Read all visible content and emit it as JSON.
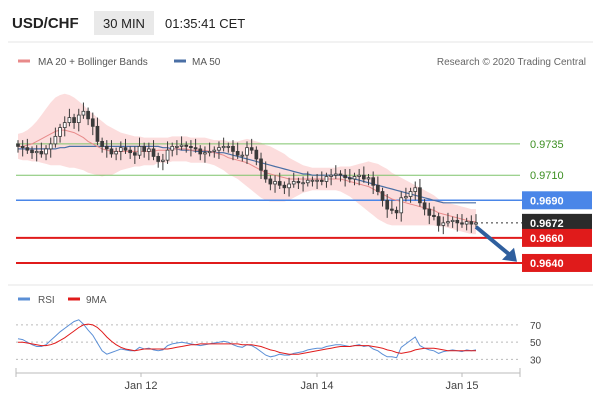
{
  "header": {
    "symbol": "USD/CHF",
    "timeframe": "30 MIN",
    "time": "01:35:41 CET"
  },
  "legend": {
    "ma20_bb": "MA 20 + Bollinger Bands",
    "ma50": "MA 50",
    "copyright": "Research © 2020 Trading Central"
  },
  "rsi_legend": {
    "rsi": "RSI",
    "ma9": "9MA"
  },
  "colors": {
    "candle": "#3a3a3a",
    "bollinger_fill": "#fbd7d7",
    "ma20": "#e88a8a",
    "ma50": "#4a6fa5",
    "green_level": "#7fc46b",
    "blue_level": "#4a86e8",
    "red_level": "#e01b1b",
    "arrow": "#2f5f9e",
    "rsi": "#5b8fd6",
    "rsi_ma": "#e01b1b"
  },
  "chart_data": [
    {
      "type": "candlestick",
      "title": "USD/CHF",
      "ylim": [
        0.9628,
        0.9778
      ],
      "x_ticks": [
        "Jan 12",
        "Jan 14",
        "Jan 15"
      ],
      "levels": [
        {
          "label": "0.9735",
          "value": 0.9735,
          "style": "green"
        },
        {
          "label": "0.9710",
          "value": 0.971,
          "style": "green"
        },
        {
          "label": "0.9690",
          "value": 0.969,
          "style": "blue"
        },
        {
          "label": "0.9672",
          "value": 0.9672,
          "style": "current"
        },
        {
          "label": "0.9660",
          "value": 0.966,
          "style": "red"
        },
        {
          "label": "0.9640",
          "value": 0.964,
          "style": "red"
        }
      ],
      "close": [
        0.9733,
        0.9732,
        0.973,
        0.9728,
        0.9729,
        0.9727,
        0.9731,
        0.9735,
        0.9741,
        0.9748,
        0.9752,
        0.9756,
        0.9752,
        0.9758,
        0.9761,
        0.9755,
        0.9749,
        0.9737,
        0.9733,
        0.9731,
        0.9727,
        0.9729,
        0.9732,
        0.973,
        0.9728,
        0.9726,
        0.9733,
        0.9729,
        0.9731,
        0.9725,
        0.9721,
        0.9722,
        0.973,
        0.9733,
        0.9733,
        0.9734,
        0.9733,
        0.9732,
        0.9731,
        0.9727,
        0.9728,
        0.9729,
        0.973,
        0.9732,
        0.9733,
        0.9733,
        0.9729,
        0.9726,
        0.9726,
        0.9732,
        0.973,
        0.9723,
        0.9714,
        0.9707,
        0.9703,
        0.9705,
        0.9702,
        0.97,
        0.9703,
        0.9705,
        0.9704,
        0.9704,
        0.9706,
        0.9706,
        0.9706,
        0.9705,
        0.9709,
        0.971,
        0.9711,
        0.971,
        0.9708,
        0.9707,
        0.9709,
        0.971,
        0.9707,
        0.9708,
        0.9702,
        0.9697,
        0.969,
        0.9683,
        0.9682,
        0.968,
        0.9692,
        0.9693,
        0.9697,
        0.97,
        0.9688,
        0.9683,
        0.9678,
        0.9677,
        0.967,
        0.9672,
        0.9673,
        0.9674,
        0.9672,
        0.9671,
        0.9673,
        0.9671,
        0.9672
      ],
      "ma20": [
        0.9733,
        0.9733,
        0.9734,
        0.9735,
        0.9737,
        0.9739,
        0.9741,
        0.9743,
        0.9745,
        0.9746,
        0.9746,
        0.9745,
        0.9744,
        0.9742,
        0.974,
        0.9737,
        0.9735,
        0.9733,
        0.9731,
        0.973,
        0.9729,
        0.9729,
        0.9729,
        0.9729,
        0.9729,
        0.9729,
        0.9729,
        0.9729,
        0.9729,
        0.9729,
        0.973,
        0.973,
        0.973,
        0.9731,
        0.9731,
        0.9731,
        0.9731,
        0.973,
        0.973,
        0.973,
        0.973,
        0.9729,
        0.9728,
        0.9727,
        0.9726,
        0.9724,
        0.9723,
        0.9722,
        0.9721,
        0.972,
        0.9718,
        0.9716,
        0.9714,
        0.9712,
        0.9711,
        0.971,
        0.9709,
        0.9708,
        0.9707,
        0.9707,
        0.9707,
        0.9707,
        0.9707,
        0.9707,
        0.9707,
        0.9707,
        0.9707,
        0.9707,
        0.9707,
        0.9707,
        0.9706,
        0.9705,
        0.9704,
        0.9703,
        0.9702,
        0.9701,
        0.9699,
        0.9697,
        0.9695,
        0.9693,
        0.9691,
        0.969,
        0.9689,
        0.9688,
        0.9687,
        0.9686,
        0.9685,
        0.9684,
        0.9683,
        0.9682,
        0.968,
        0.9679,
        0.9678,
        0.9677,
        0.9676,
        0.9675,
        0.9674,
        0.9673,
        0.9673
      ],
      "ma50": [
        0.9731,
        0.9731,
        0.9731,
        0.9731,
        0.9731,
        0.9731,
        0.9731,
        0.9731,
        0.9731,
        0.9732,
        0.9732,
        0.9733,
        0.9733,
        0.9733,
        0.9733,
        0.9733,
        0.9733,
        0.9733,
        0.9733,
        0.9733,
        0.9733,
        0.9733,
        0.9733,
        0.9733,
        0.9733,
        0.9733,
        0.9733,
        0.9733,
        0.9733,
        0.9733,
        0.9733,
        0.9732,
        0.9732,
        0.9731,
        0.9731,
        0.973,
        0.973,
        0.973,
        0.9729,
        0.9729,
        0.9729,
        0.9729,
        0.9728,
        0.9728,
        0.9728,
        0.9727,
        0.9726,
        0.9725,
        0.9724,
        0.9723,
        0.9722,
        0.9721,
        0.972,
        0.9719,
        0.9718,
        0.9717,
        0.9716,
        0.9715,
        0.9714,
        0.9713,
        0.9712,
        0.9711,
        0.9711,
        0.971,
        0.971,
        0.971,
        0.971,
        0.971,
        0.971,
        0.971,
        0.9709,
        0.9708,
        0.9707,
        0.9706,
        0.9705,
        0.9704,
        0.9703,
        0.9702,
        0.9701,
        0.97,
        0.9699,
        0.9698,
        0.9697,
        0.9696,
        0.9695,
        0.9694,
        0.9693,
        0.9692,
        0.9691,
        0.969,
        0.9689,
        0.9688,
        0.9688,
        0.9688,
        0.9688,
        0.9688,
        0.9688,
        0.9688,
        0.9688
      ],
      "bb_width": [
        0.001,
        0.0011,
        0.0012,
        0.0014,
        0.0016,
        0.0019,
        0.0022,
        0.0025,
        0.0027,
        0.0028,
        0.0029,
        0.0029,
        0.0028,
        0.0027,
        0.0026,
        0.0025,
        0.0024,
        0.0023,
        0.0022,
        0.002,
        0.0019,
        0.0017,
        0.0015,
        0.0014,
        0.0013,
        0.0012,
        0.0012,
        0.0011,
        0.0011,
        0.0011,
        0.001,
        0.001,
        0.001,
        0.001,
        0.001,
        0.001,
        0.001,
        0.001,
        0.001,
        0.001,
        0.001,
        0.001,
        0.001,
        0.0011,
        0.0012,
        0.0013,
        0.0014,
        0.0015,
        0.0017,
        0.0019,
        0.002,
        0.0021,
        0.0022,
        0.0022,
        0.0022,
        0.0021,
        0.002,
        0.0019,
        0.0017,
        0.0015,
        0.0013,
        0.0011,
        0.001,
        0.0009,
        0.0009,
        0.0009,
        0.0009,
        0.0009,
        0.0009,
        0.001,
        0.0011,
        0.0012,
        0.0014,
        0.0016,
        0.0018,
        0.002,
        0.0021,
        0.0022,
        0.0022,
        0.0022,
        0.0021,
        0.002,
        0.0019,
        0.0018,
        0.0017,
        0.0016,
        0.0015,
        0.0014,
        0.0013,
        0.0012,
        0.0011,
        0.001,
        0.001,
        0.001,
        0.001,
        0.001,
        0.001,
        0.001,
        0.001
      ]
    },
    {
      "type": "line",
      "title": "RSI",
      "y_ticks": [
        70,
        50,
        30
      ],
      "ylim": [
        20,
        85
      ],
      "series": [
        {
          "name": "RSI",
          "values": [
            54,
            53,
            50,
            47,
            45,
            45,
            47,
            52,
            57,
            62,
            66,
            70,
            74,
            76,
            71,
            64,
            58,
            49,
            40,
            36,
            38,
            40,
            42,
            41,
            40,
            40,
            44,
            42,
            43,
            41,
            40,
            41,
            46,
            48,
            49,
            50,
            49,
            48,
            47,
            46,
            47,
            48,
            49,
            50,
            51,
            50,
            47,
            45,
            44,
            47,
            46,
            43,
            39,
            35,
            33,
            34,
            36,
            35,
            35,
            37,
            38,
            39,
            41,
            42,
            43,
            43,
            45,
            46,
            47,
            47,
            46,
            45,
            46,
            47,
            45,
            46,
            42,
            40,
            36,
            33,
            33,
            32,
            44,
            48,
            52,
            56,
            46,
            43,
            41,
            40,
            37,
            39,
            40,
            41,
            40,
            39,
            41,
            40,
            41
          ]
        },
        {
          "name": "9MA",
          "values": [
            50,
            50,
            49,
            48,
            47,
            46,
            46,
            47,
            49,
            52,
            55,
            59,
            63,
            67,
            70,
            71,
            70,
            67,
            62,
            56,
            51,
            47,
            44,
            42,
            41,
            40,
            41,
            42,
            42,
            42,
            42,
            42,
            42,
            43,
            44,
            45,
            46,
            47,
            47,
            48,
            48,
            48,
            48,
            48,
            48,
            48,
            48,
            48,
            47,
            47,
            47,
            46,
            45,
            43,
            41,
            40,
            38,
            37,
            36,
            36,
            36,
            37,
            38,
            39,
            40,
            41,
            42,
            43,
            44,
            45,
            45,
            45,
            46,
            46,
            46,
            46,
            45,
            44,
            43,
            41,
            40,
            38,
            37,
            38,
            39,
            41,
            42,
            43,
            43,
            43,
            42,
            41,
            40,
            40,
            40,
            40,
            40,
            40,
            40
          ]
        }
      ]
    }
  ]
}
